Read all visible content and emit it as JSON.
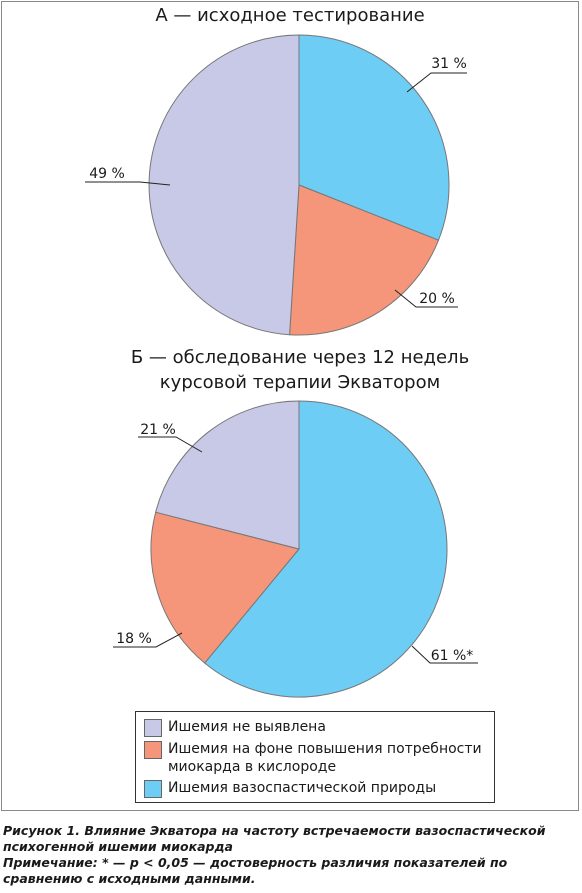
{
  "chart_data": [
    {
      "type": "pie",
      "title": "А — исходное тестирование",
      "slices": [
        {
          "category": "vaso",
          "value": 31,
          "label": "31 %",
          "color": "#6dcdf5"
        },
        {
          "category": "demand",
          "value": 20,
          "label": "20 %",
          "color": "#f5967a"
        },
        {
          "category": "none",
          "value": 49,
          "label": "49 %",
          "color": "#c8c9e6"
        }
      ]
    },
    {
      "type": "pie",
      "title": "Б — обследование через 12 недель курсовой терапии Экватором",
      "slices": [
        {
          "category": "vaso",
          "value": 61,
          "label": "61 %*",
          "color": "#6dcdf5"
        },
        {
          "category": "demand",
          "value": 18,
          "label": "18 %",
          "color": "#f5967a"
        },
        {
          "category": "none",
          "value": 21,
          "label": "21 %",
          "color": "#c8c9e6"
        }
      ]
    }
  ],
  "titles": {
    "a": "А — исходное тестирование",
    "b_line1": "Б — обследование через 12 недель",
    "b_line2": "курсовой терапии Экватором"
  },
  "legend": [
    {
      "label": "Ишемия не выявлена",
      "color": "#c8c9e6"
    },
    {
      "label": "Ишемия на фоне повышения потребности миокарда в кислороде",
      "color": "#f5967a"
    },
    {
      "label": "Ишемия вазоспастической природы",
      "color": "#6dcdf5"
    }
  ],
  "caption": {
    "figure": "Рисунок 1. Влияние Экватора на частоту встречаемости вазоспастической психогенной ишемии миокарда",
    "note": "Примечание: * — p < 0,05 — достоверность различия показателей по сравнению с исходными данными."
  }
}
